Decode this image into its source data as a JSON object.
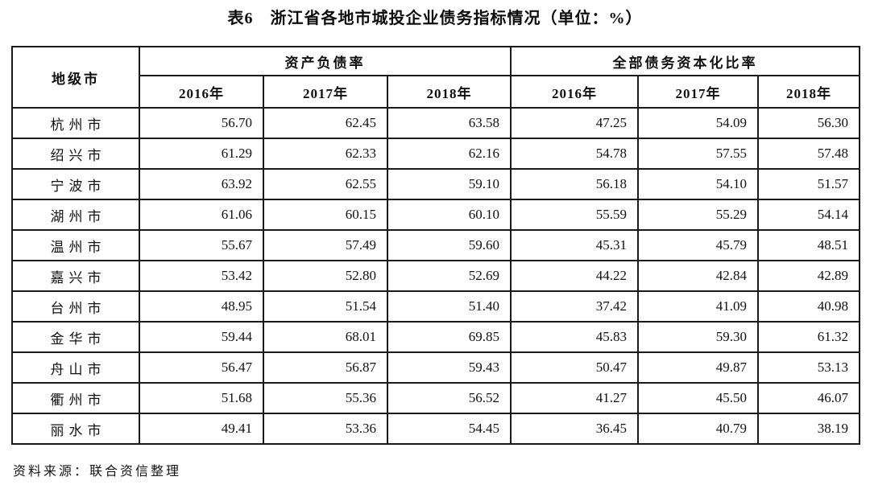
{
  "title": "表6　浙江省各地市城投企业债务指标情况（单位：%）",
  "source_note": "资料来源：联合资信整理",
  "table": {
    "corner_header": "地级市",
    "group_headers": [
      "资产负债率",
      "全部债务资本化比率"
    ],
    "year_headers": [
      "2016年",
      "2017年",
      "2018年"
    ],
    "unit": "%",
    "rows": [
      {
        "city": "杭州市",
        "asset_liability_ratio": [
          "56.70",
          "62.45",
          "63.58"
        ],
        "total_debt_capitalization_ratio": [
          "47.25",
          "54.09",
          "56.30"
        ]
      },
      {
        "city": "绍兴市",
        "asset_liability_ratio": [
          "61.29",
          "62.33",
          "62.16"
        ],
        "total_debt_capitalization_ratio": [
          "54.78",
          "57.55",
          "57.48"
        ]
      },
      {
        "city": "宁波市",
        "asset_liability_ratio": [
          "63.92",
          "62.55",
          "59.10"
        ],
        "total_debt_capitalization_ratio": [
          "56.18",
          "54.10",
          "51.57"
        ]
      },
      {
        "city": "湖州市",
        "asset_liability_ratio": [
          "61.06",
          "60.15",
          "60.10"
        ],
        "total_debt_capitalization_ratio": [
          "55.59",
          "55.29",
          "54.14"
        ]
      },
      {
        "city": "温州市",
        "asset_liability_ratio": [
          "55.67",
          "57.49",
          "59.60"
        ],
        "total_debt_capitalization_ratio": [
          "45.31",
          "45.79",
          "48.51"
        ]
      },
      {
        "city": "嘉兴市",
        "asset_liability_ratio": [
          "53.42",
          "52.80",
          "52.69"
        ],
        "total_debt_capitalization_ratio": [
          "44.22",
          "42.84",
          "42.89"
        ]
      },
      {
        "city": "台州市",
        "asset_liability_ratio": [
          "48.95",
          "51.54",
          "51.40"
        ],
        "total_debt_capitalization_ratio": [
          "37.42",
          "41.09",
          "40.98"
        ]
      },
      {
        "city": "金华市",
        "asset_liability_ratio": [
          "59.44",
          "68.01",
          "69.85"
        ],
        "total_debt_capitalization_ratio": [
          "45.83",
          "59.30",
          "61.32"
        ]
      },
      {
        "city": "舟山市",
        "asset_liability_ratio": [
          "56.47",
          "56.87",
          "59.43"
        ],
        "total_debt_capitalization_ratio": [
          "50.47",
          "49.87",
          "53.13"
        ]
      },
      {
        "city": "衢州市",
        "asset_liability_ratio": [
          "51.68",
          "55.36",
          "56.52"
        ],
        "total_debt_capitalization_ratio": [
          "41.27",
          "45.50",
          "46.07"
        ]
      },
      {
        "city": "丽水市",
        "asset_liability_ratio": [
          "49.41",
          "53.36",
          "54.45"
        ],
        "total_debt_capitalization_ratio": [
          "36.45",
          "40.79",
          "38.19"
        ]
      }
    ]
  }
}
